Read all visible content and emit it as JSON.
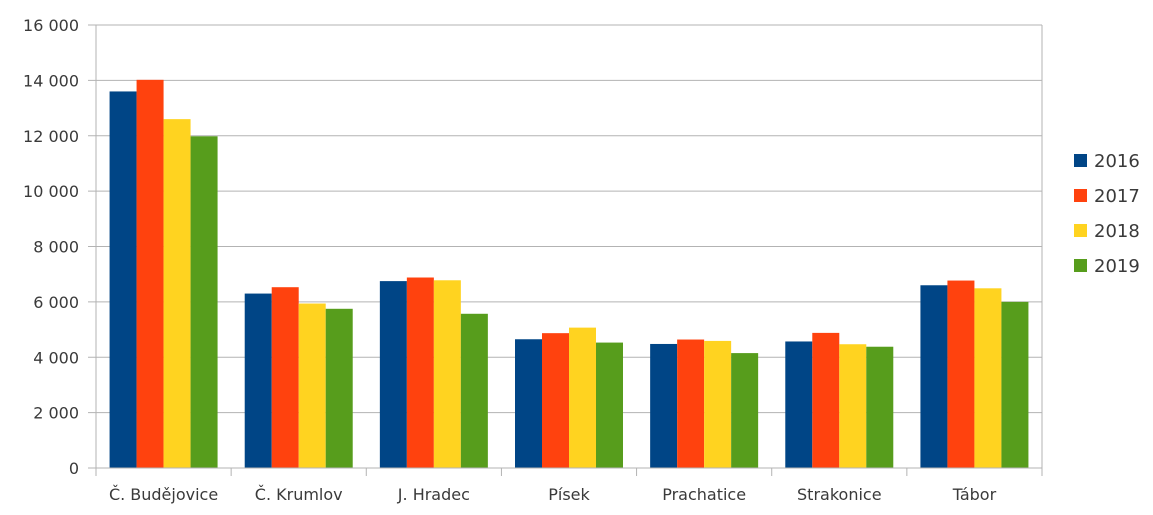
{
  "chart_data": {
    "type": "bar",
    "categories": [
      "Č. Budějovice",
      "Č. Krumlov",
      "J. Hradec",
      "Písek",
      "Prachatice",
      "Strakonice",
      "Tábor"
    ],
    "series": [
      {
        "name": "2016",
        "color": "#004586",
        "values": [
          13600,
          6300,
          6750,
          4650,
          4480,
          4570,
          6600
        ]
      },
      {
        "name": "2017",
        "color": "#ff420e",
        "values": [
          14020,
          6530,
          6880,
          4870,
          4640,
          4880,
          6770
        ]
      },
      {
        "name": "2018",
        "color": "#ffd320",
        "values": [
          12600,
          5940,
          6780,
          5070,
          4590,
          4470,
          6490
        ]
      },
      {
        "name": "2019",
        "color": "#579d1c",
        "values": [
          11980,
          5750,
          5570,
          4530,
          4150,
          4380,
          6000
        ]
      }
    ],
    "ylim": [
      0,
      16000
    ],
    "yticks": [
      {
        "value": 0,
        "label": "0"
      },
      {
        "value": 2000,
        "label": "2 000"
      },
      {
        "value": 4000,
        "label": "4 000"
      },
      {
        "value": 6000,
        "label": "6 000"
      },
      {
        "value": 8000,
        "label": "8 000"
      },
      {
        "value": 10000,
        "label": "10 000"
      },
      {
        "value": 12000,
        "label": "12 000"
      },
      {
        "value": 14000,
        "label": "14 000"
      },
      {
        "value": 16000,
        "label": "16 000"
      }
    ],
    "grid": true,
    "legend_position": "right"
  }
}
